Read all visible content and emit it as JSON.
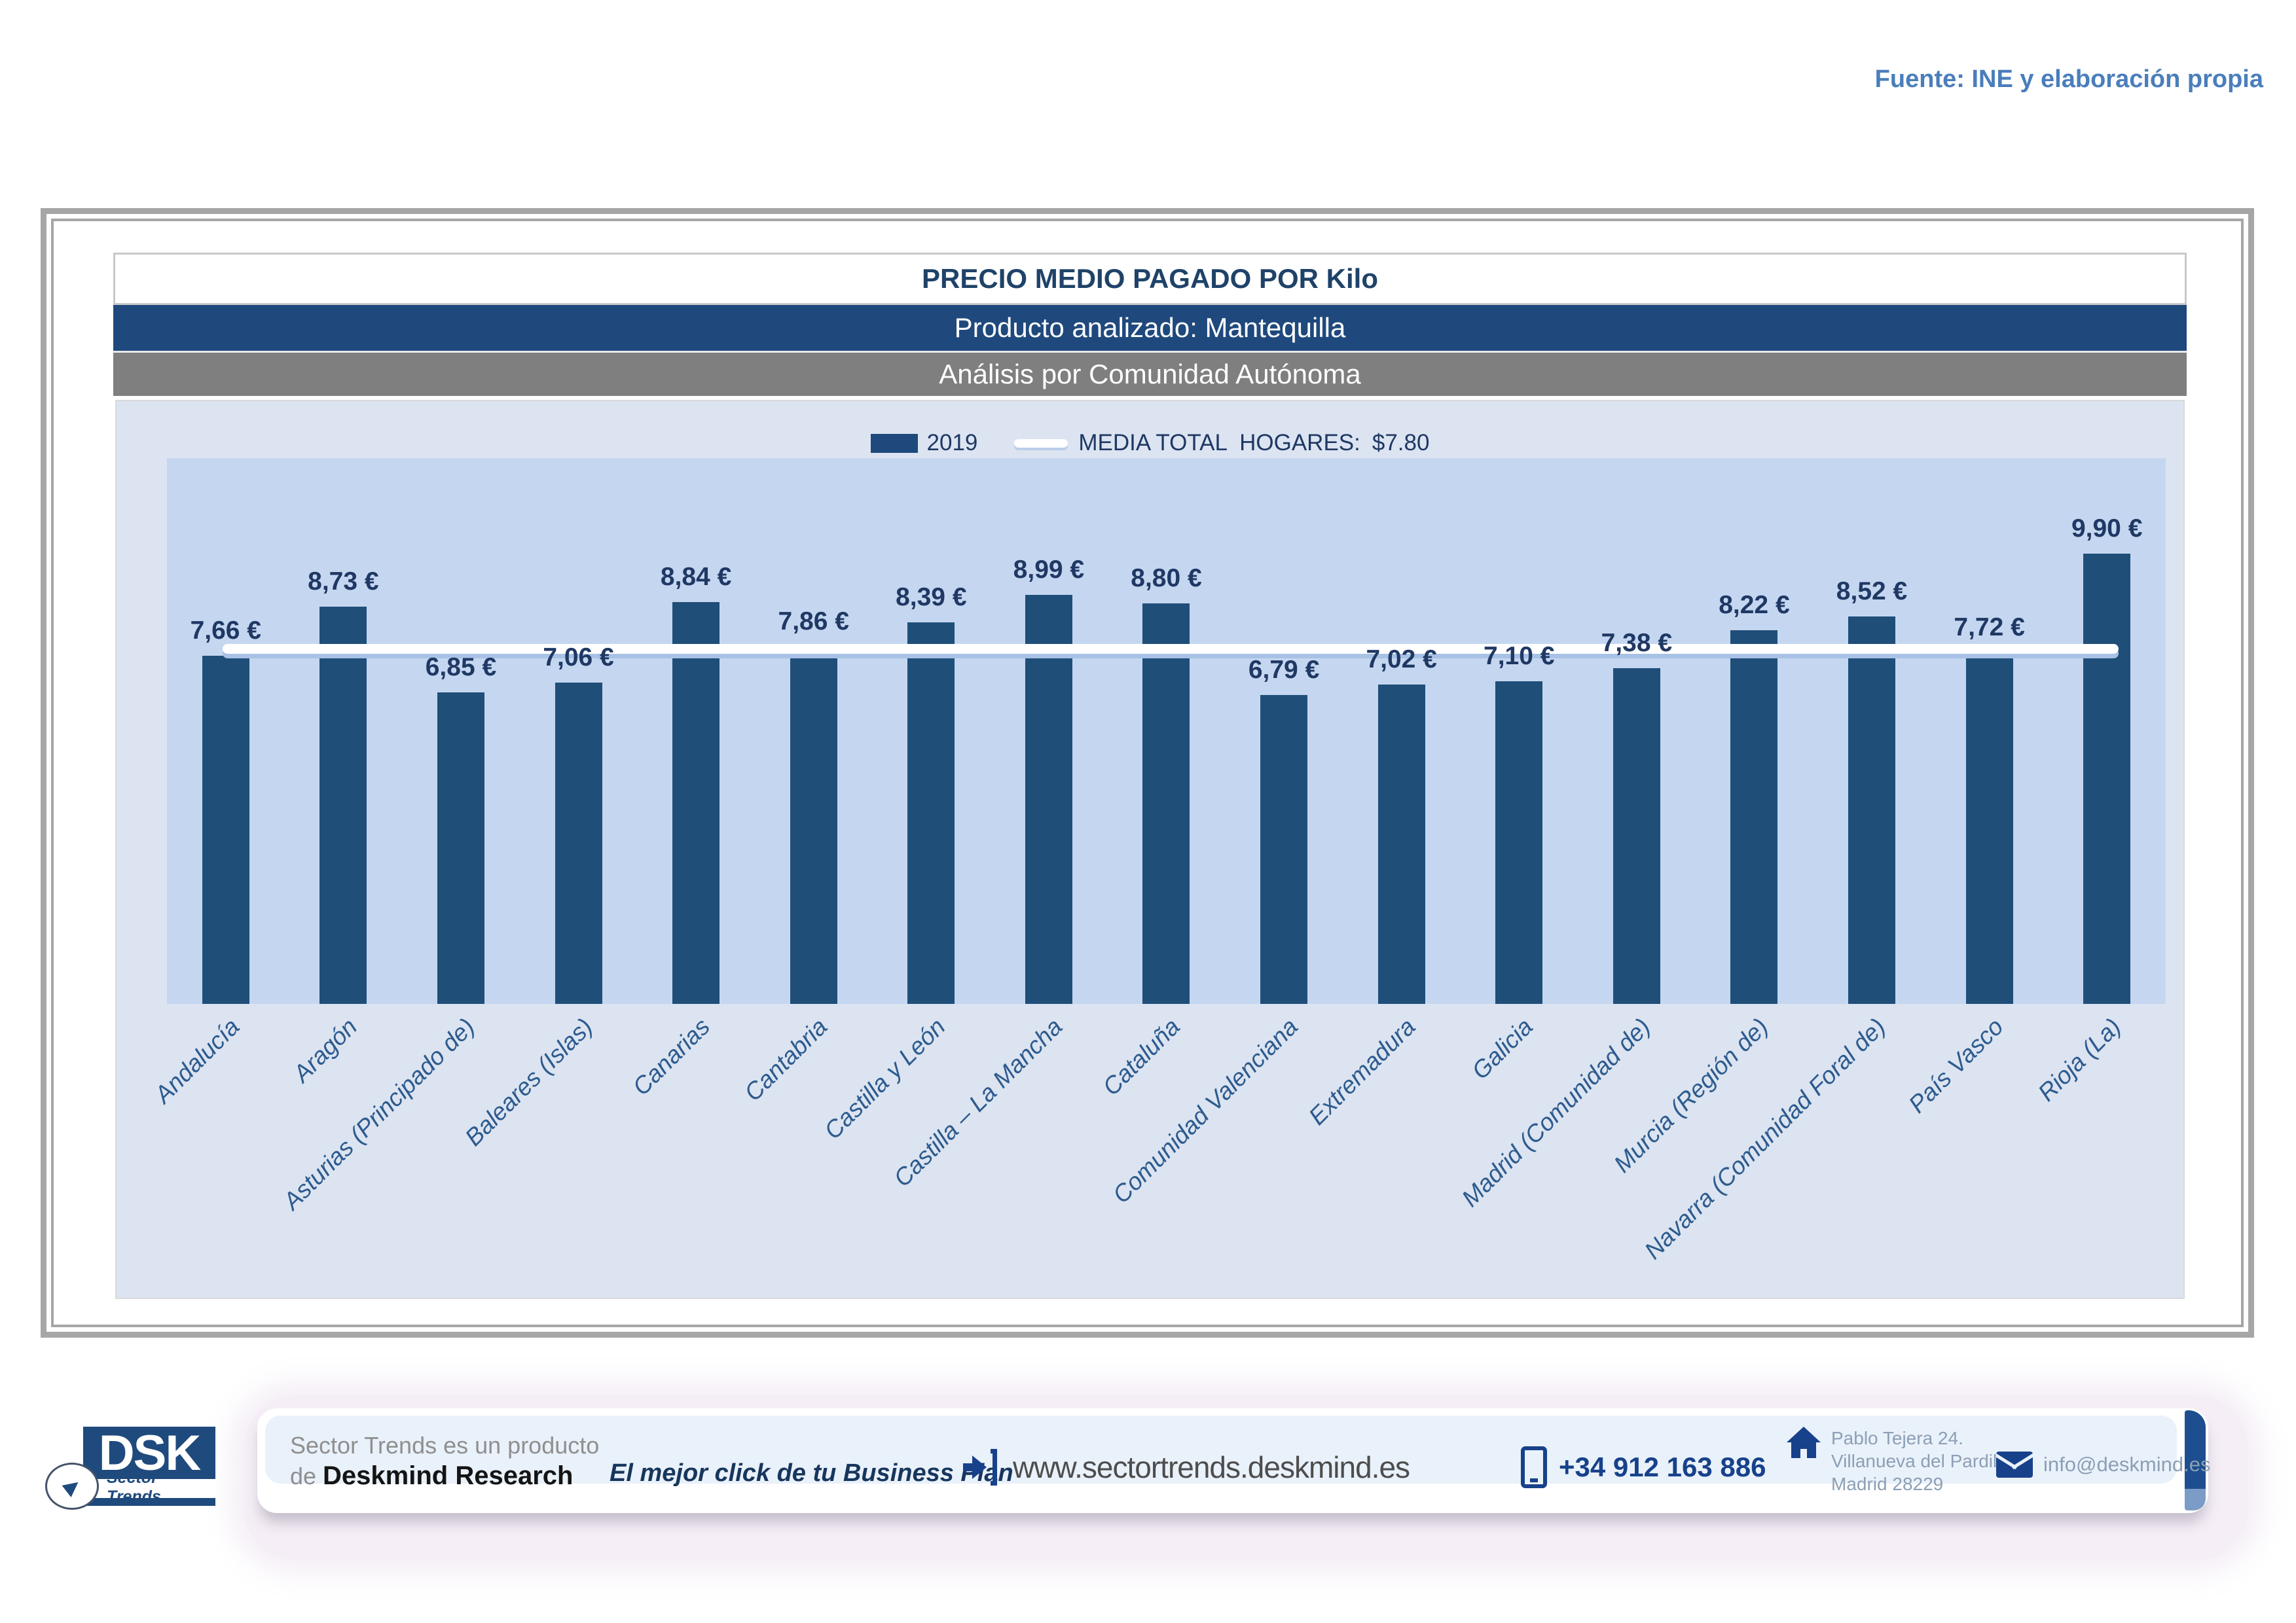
{
  "source_note": "Fuente: INE y elaboración propia",
  "header": {
    "product": "Producto analizado: Mantequilla",
    "analysis": "Análisis por Comunidad Autónoma"
  },
  "legend": {
    "series_label": "2019",
    "media_label": "MEDIA TOTAL  HOGARES:",
    "media_value": "$7.80"
  },
  "chart_data": {
    "type": "bar",
    "title": "PRECIO MEDIO PAGADO POR Kilo",
    "categories": [
      "Andalucía",
      "Aragón",
      "Asturias (Principado de)",
      "Baleares (Islas)",
      "Canarias",
      "Cantabria",
      "Castilla y León",
      "Castilla – La Mancha",
      "Cataluña",
      "Comunidad Valenciana",
      "Extremadura",
      "Galicia",
      "Madrid (Comunidad de)",
      "Murcia (Región de)",
      "Navarra (Comunidad Foral de)",
      "País Vasco",
      "Rioja (La)"
    ],
    "values": [
      7.66,
      8.73,
      6.85,
      7.06,
      8.84,
      7.86,
      8.39,
      8.99,
      8.8,
      6.79,
      7.02,
      7.1,
      7.38,
      8.22,
      8.52,
      7.72,
      9.9
    ],
    "value_labels": [
      "7,66 €",
      "8,73 €",
      "6,85 €",
      "7,06 €",
      "8,84 €",
      "7,86 €",
      "8,39 €",
      "8,99 €",
      "8,80 €",
      "6,79 €",
      "7,02 €",
      "7,10 €",
      "7,38 €",
      "8,22 €",
      "8,52 €",
      "7,72 €",
      "9,90 €"
    ],
    "series_name": "2019",
    "media_line": {
      "label": "MEDIA TOTAL HOGARES",
      "value": 7.8,
      "display": "$7.80"
    },
    "ylim": [
      0,
      12
    ],
    "xlabel": "",
    "ylabel": "",
    "grid": false,
    "legend_position": "top",
    "bar_color": "#1F4E79",
    "media_line_color": "#FFFFFF"
  },
  "footer": {
    "logo": {
      "acronym": "DSK",
      "tagline": "Sector Trends"
    },
    "product_prefix": "Sector Trends es un producto",
    "product_de": "de ",
    "product_brand": "Deskmind Research",
    "slogan": "El mejor click de tu Business Plan",
    "website": "www.sectortrends.deskmind.es",
    "phone": "+34 912 163 886",
    "address_lines": [
      "Pablo Tejera 24.",
      "Villanueva del Pardillo.",
      "Madrid 28229"
    ],
    "email": "info@deskmind.es"
  },
  "colors": {
    "bar": "#1F4E79",
    "header_blue": "#1F497D",
    "header_gray": "#7F7F7F",
    "panel_bg": "#DCE4F1",
    "plot_bg": "#C5D7F0",
    "source_note": "#4A7EBB",
    "value_label": "#1F3864"
  }
}
